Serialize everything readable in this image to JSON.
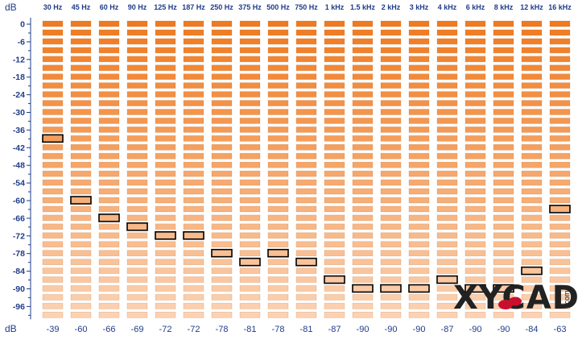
{
  "unit_label_top": "dB",
  "unit_label_bottom": "dB",
  "frequencies": [
    "30 Hz",
    "45 Hz",
    "60 Hz",
    "90 Hz",
    "125 Hz",
    "187 Hz",
    "250 Hz",
    "375 Hz",
    "500 Hz",
    "750 Hz",
    "1 kHz",
    "1.5 kHz",
    "2 kHz",
    "3 kHz",
    "4 kHz",
    "6 kHz",
    "8 kHz",
    "12 kHz",
    "16 kHz"
  ],
  "db_scale": [
    "0",
    "-6",
    "-12",
    "-18",
    "-24",
    "-30",
    "-36",
    "-42",
    "-48",
    "-54",
    "-60",
    "-66",
    "-72",
    "-78",
    "-84",
    "-90",
    "-96"
  ],
  "peak_values": [
    "-39",
    "-60",
    "-66",
    "-69",
    "-72",
    "-72",
    "-78",
    "-81",
    "-78",
    "-81",
    "-87",
    "-90",
    "-90",
    "-90",
    "-87",
    "-90",
    "-90",
    "-84",
    "-63"
  ],
  "peaks_db": [
    -39,
    -60,
    -66,
    -69,
    -72,
    -72,
    -78,
    -81,
    -78,
    -81,
    -87,
    -90,
    -90,
    -90,
    -87,
    -90,
    -90,
    -84,
    -63
  ],
  "watermark": {
    "text": "XYCAD",
    "suffix": ".com"
  },
  "colors": {
    "segment_top": "#f07a20",
    "segment_bottom": "#fcd2b2",
    "segment_border": "#b86a30",
    "axis": "#1f3c88",
    "peak_marker": "#000000"
  }
}
